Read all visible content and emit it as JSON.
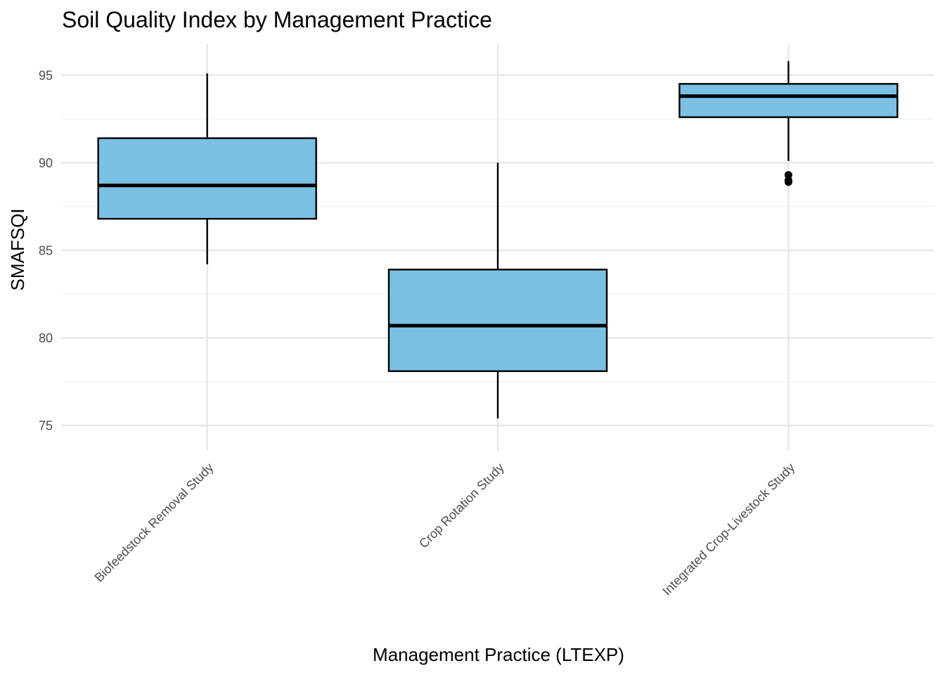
{
  "chart_data": {
    "type": "box",
    "title": "Soil Quality Index by Management Practice",
    "xlabel": "Management Practice (LTEXP)",
    "ylabel": "SMAFSQI",
    "ylim": [
      73.6,
      96.8
    ],
    "yticks": [
      75,
      80,
      85,
      90,
      95
    ],
    "grid": true,
    "categories": [
      "Biofeedstock Removal Study",
      "Crop Rotation Study",
      "Integrated Crop-Livestock Study"
    ],
    "boxes": [
      {
        "category": "Biofeedstock Removal Study",
        "min": 84.2,
        "q1": 86.8,
        "median": 88.7,
        "q3": 91.4,
        "max": 95.1,
        "outliers": []
      },
      {
        "category": "Crop Rotation Study",
        "min": 75.4,
        "q1": 78.1,
        "median": 80.7,
        "q3": 83.9,
        "max": 90.0,
        "outliers": []
      },
      {
        "category": "Integrated Crop-Livestock Study",
        "min": 90.1,
        "q1": 92.6,
        "median": 93.8,
        "q3": 94.5,
        "max": 95.8,
        "outliers": [
          89.3,
          89.0,
          88.9
        ]
      }
    ],
    "colors": {
      "box_fill": "#7AC1E4",
      "box_stroke": "#000000",
      "grid": "#e6e6e6",
      "tick_text": "#4d4d4d"
    }
  }
}
